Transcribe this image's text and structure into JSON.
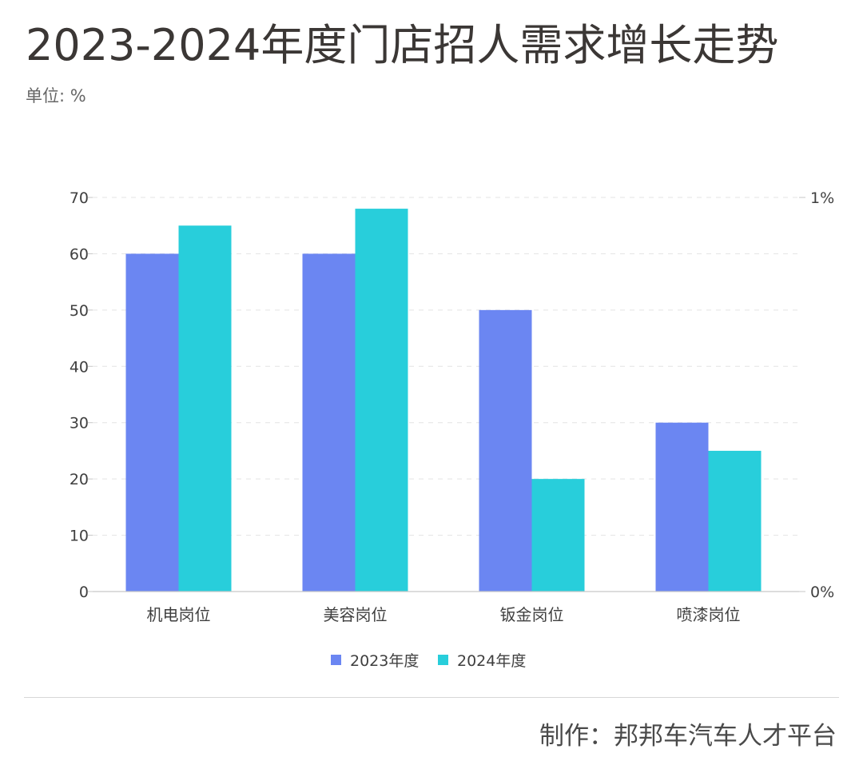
{
  "header": {
    "title": "2023-2024年度门店招人需求增长走势",
    "unit": "单位: %"
  },
  "colors": {
    "series_2023": "#6b86f2",
    "series_2024": "#28cedb",
    "grid": "#e3e3e3",
    "axis": "#c7c7c7",
    "text": "#3f3f3f"
  },
  "chart_data": {
    "type": "bar",
    "title": "2023-2024年度门店招人需求增长走势",
    "ylabel": "单位: %",
    "categories": [
      "机电岗位",
      "美容岗位",
      "钣金岗位",
      "喷漆岗位"
    ],
    "series": [
      {
        "name": "2023年度",
        "values": [
          60,
          60,
          50,
          30
        ]
      },
      {
        "name": "2024年度",
        "values": [
          65,
          68,
          20,
          25
        ]
      }
    ],
    "ylim": [
      0,
      70
    ],
    "y_ticks": [
      0,
      10,
      20,
      30,
      40,
      50,
      60,
      70
    ],
    "right_axis_labels": [
      "0%",
      "1%"
    ],
    "grid": true,
    "legend": "bottom-center"
  },
  "footer": {
    "credit": "制作：邦邦车汽车人才平台"
  }
}
